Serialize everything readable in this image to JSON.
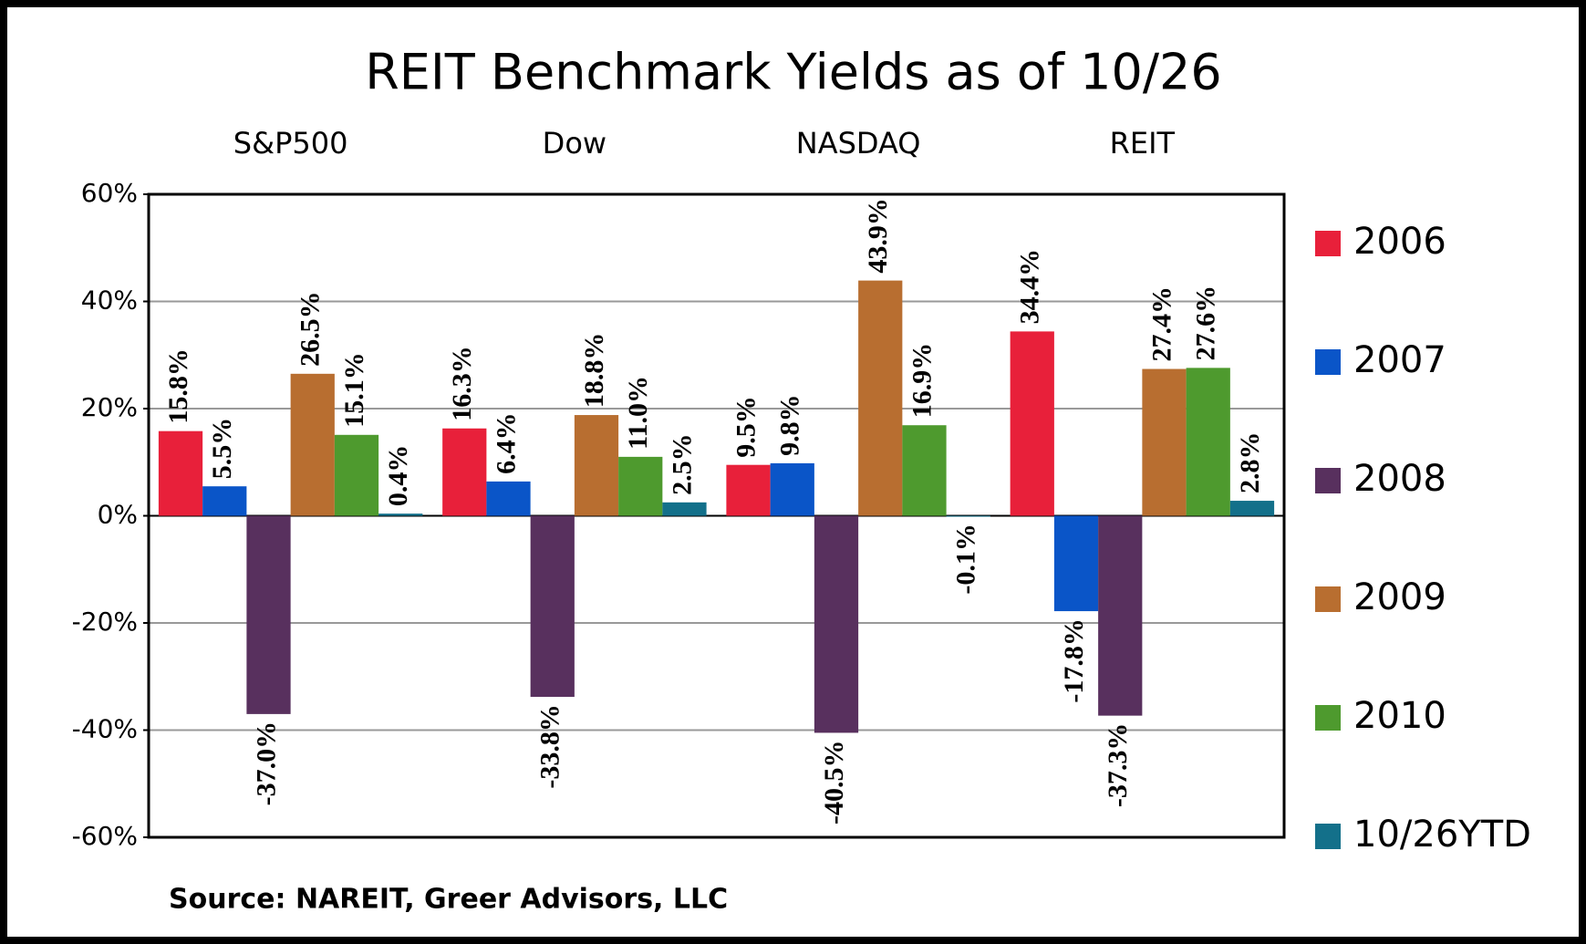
{
  "chart_data": {
    "type": "bar",
    "title": "REIT Benchmark Yields as of 10/26",
    "categories": [
      "S&P500",
      "Dow",
      "NASDAQ",
      "REIT"
    ],
    "series": [
      {
        "name": "2006",
        "color": "#e8203a",
        "values": [
          15.8,
          16.3,
          9.5,
          34.4
        ],
        "value_labels": [
          "15.8%",
          "16.3%",
          "9.5%",
          "34.4%"
        ]
      },
      {
        "name": "2007",
        "color": "#0a55c8",
        "values": [
          5.5,
          6.4,
          9.8,
          -17.8
        ],
        "value_labels": [
          "5.5%",
          "6.4%",
          "9.8%",
          "-17.8%"
        ]
      },
      {
        "name": "2008",
        "color": "#58305e",
        "values": [
          -37.0,
          -33.8,
          -40.5,
          -37.3
        ],
        "value_labels": [
          "-37.0%",
          "-33.8%",
          "-40.5%",
          "-37.3%"
        ]
      },
      {
        "name": "2009",
        "color": "#b86e30",
        "values": [
          26.5,
          18.8,
          43.9,
          27.4
        ],
        "value_labels": [
          "26.5%",
          "18.8%",
          "43.9%",
          "27.4%"
        ]
      },
      {
        "name": "2010",
        "color": "#4e9a2e",
        "values": [
          15.1,
          11.0,
          16.9,
          27.6
        ],
        "value_labels": [
          "15.1%",
          "11.0%",
          "16.9%",
          "27.6%"
        ]
      },
      {
        "name": "10/26YTD",
        "color": "#13708a",
        "values": [
          0.4,
          2.5,
          -0.1,
          2.8
        ],
        "value_labels": [
          "0.4%",
          "2.5%",
          "-0.1%",
          "2.8%"
        ]
      }
    ],
    "ylim": [
      -60,
      60
    ],
    "yticks": [
      {
        "value": -60,
        "label": "-60%"
      },
      {
        "value": -40,
        "label": "-40%"
      },
      {
        "value": -20,
        "label": "-20%"
      },
      {
        "value": 0,
        "label": "0%"
      },
      {
        "value": 20,
        "label": "20%"
      },
      {
        "value": 40,
        "label": "40%"
      },
      {
        "value": 60,
        "label": "60%"
      }
    ],
    "grid": true,
    "legend": "right",
    "source": "Source: NAREIT, Greer Advisors, LLC"
  }
}
